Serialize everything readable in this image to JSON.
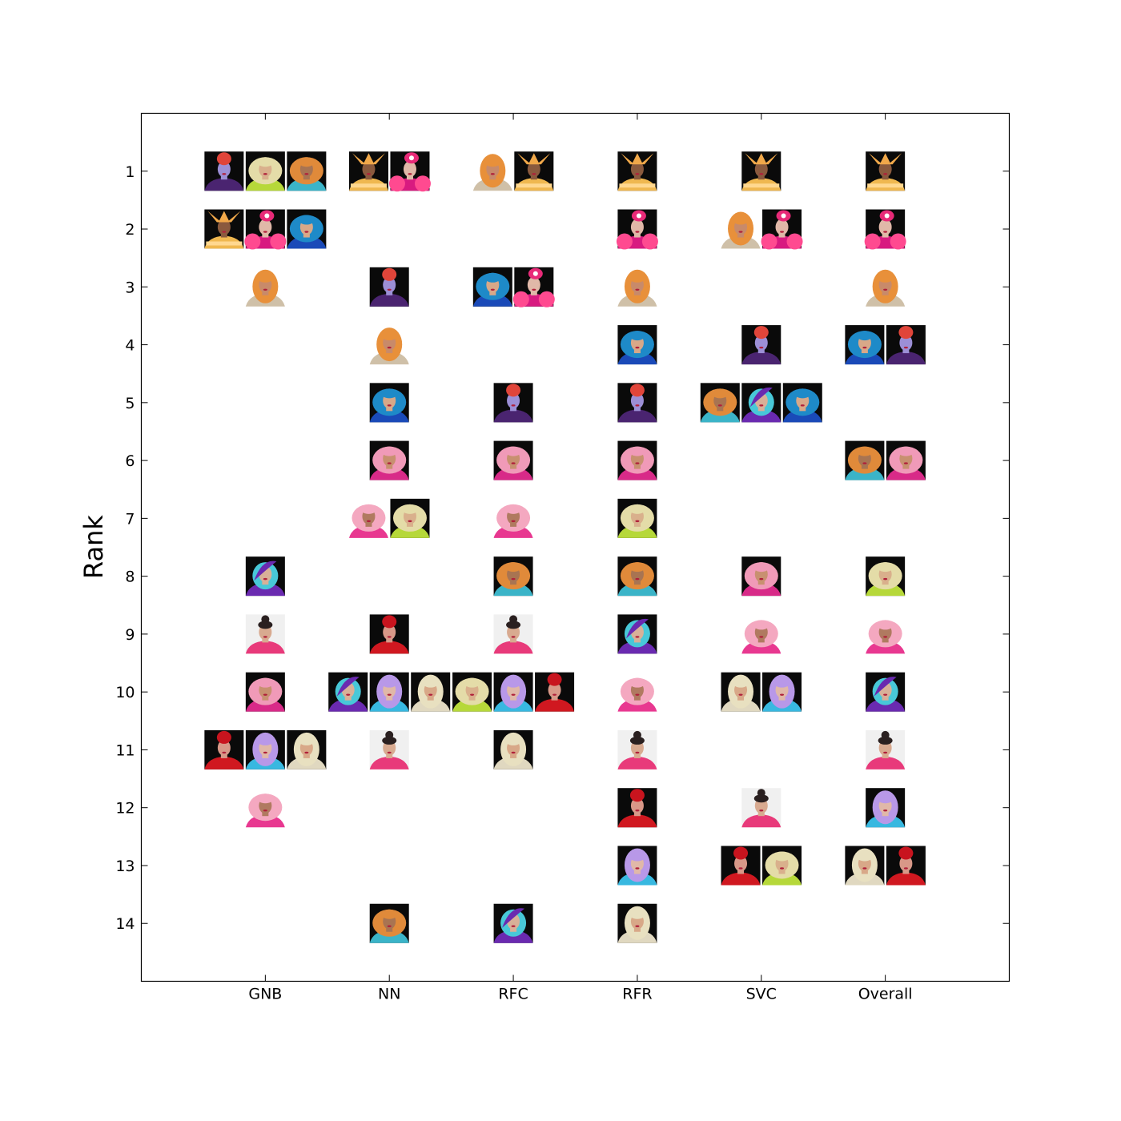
{
  "chart_data": {
    "type": "scatter",
    "title": "",
    "xlabel": "",
    "ylabel": "Rank",
    "categories": [
      "GNB",
      "NN",
      "RFC",
      "RFR",
      "SVC",
      "Overall"
    ],
    "y_ticks": [
      "1",
      "2",
      "3",
      "4",
      "5",
      "6",
      "7",
      "8",
      "9",
      "10",
      "11",
      "12",
      "13",
      "14"
    ],
    "ylim": [
      0,
      15
    ],
    "y_inverted": true,
    "grid": false,
    "legend": "none",
    "marker": "portrait-thumbnail",
    "points": [
      {
        "category": "GNB",
        "rank": 1,
        "portrait": "purple-devil"
      },
      {
        "category": "GNB",
        "rank": 1,
        "portrait": "blonde-green"
      },
      {
        "category": "GNB",
        "rank": 1,
        "portrait": "orange-curly"
      },
      {
        "category": "GNB",
        "rank": 2,
        "portrait": "gold-crown"
      },
      {
        "category": "GNB",
        "rank": 2,
        "portrait": "pink-hat"
      },
      {
        "category": "GNB",
        "rank": 2,
        "portrait": "blue-hair"
      },
      {
        "category": "GNB",
        "rank": 3,
        "portrait": "orange-long"
      },
      {
        "category": "GNB",
        "rank": 8,
        "portrait": "teal-purple"
      },
      {
        "category": "GNB",
        "rank": 9,
        "portrait": "dark-hair-light"
      },
      {
        "category": "GNB",
        "rank": 10,
        "portrait": "pink-curls"
      },
      {
        "category": "GNB",
        "rank": 11,
        "portrait": "red-updo"
      },
      {
        "category": "GNB",
        "rank": 11,
        "portrait": "lavender-hair"
      },
      {
        "category": "GNB",
        "rank": 11,
        "portrait": "platinum-hair"
      },
      {
        "category": "GNB",
        "rank": 12,
        "portrait": "pink-wavy"
      },
      {
        "category": "NN",
        "rank": 1,
        "portrait": "gold-crown"
      },
      {
        "category": "NN",
        "rank": 1,
        "portrait": "pink-hat"
      },
      {
        "category": "NN",
        "rank": 3,
        "portrait": "purple-devil"
      },
      {
        "category": "NN",
        "rank": 4,
        "portrait": "orange-long"
      },
      {
        "category": "NN",
        "rank": 5,
        "portrait": "blue-hair"
      },
      {
        "category": "NN",
        "rank": 6,
        "portrait": "pink-curls"
      },
      {
        "category": "NN",
        "rank": 7,
        "portrait": "pink-wavy"
      },
      {
        "category": "NN",
        "rank": 7,
        "portrait": "blonde-green"
      },
      {
        "category": "NN",
        "rank": 9,
        "portrait": "red-updo"
      },
      {
        "category": "NN",
        "rank": 10,
        "portrait": "teal-purple"
      },
      {
        "category": "NN",
        "rank": 10,
        "portrait": "lavender-hair"
      },
      {
        "category": "NN",
        "rank": 10,
        "portrait": "platinum-hair"
      },
      {
        "category": "NN",
        "rank": 11,
        "portrait": "dark-hair-light"
      },
      {
        "category": "NN",
        "rank": 14,
        "portrait": "orange-curly"
      },
      {
        "category": "RFC",
        "rank": 1,
        "portrait": "orange-long"
      },
      {
        "category": "RFC",
        "rank": 1,
        "portrait": "gold-crown"
      },
      {
        "category": "RFC",
        "rank": 3,
        "portrait": "blue-hair"
      },
      {
        "category": "RFC",
        "rank": 3,
        "portrait": "pink-hat"
      },
      {
        "category": "RFC",
        "rank": 5,
        "portrait": "purple-devil"
      },
      {
        "category": "RFC",
        "rank": 6,
        "portrait": "pink-curls"
      },
      {
        "category": "RFC",
        "rank": 7,
        "portrait": "pink-wavy"
      },
      {
        "category": "RFC",
        "rank": 8,
        "portrait": "orange-curly"
      },
      {
        "category": "RFC",
        "rank": 9,
        "portrait": "dark-hair-light"
      },
      {
        "category": "RFC",
        "rank": 10,
        "portrait": "blonde-green"
      },
      {
        "category": "RFC",
        "rank": 10,
        "portrait": "lavender-hair"
      },
      {
        "category": "RFC",
        "rank": 10,
        "portrait": "red-updo"
      },
      {
        "category": "RFC",
        "rank": 11,
        "portrait": "platinum-hair"
      },
      {
        "category": "RFC",
        "rank": 14,
        "portrait": "teal-purple"
      },
      {
        "category": "RFR",
        "rank": 1,
        "portrait": "gold-crown"
      },
      {
        "category": "RFR",
        "rank": 2,
        "portrait": "pink-hat"
      },
      {
        "category": "RFR",
        "rank": 3,
        "portrait": "orange-long"
      },
      {
        "category": "RFR",
        "rank": 4,
        "portrait": "blue-hair"
      },
      {
        "category": "RFR",
        "rank": 5,
        "portrait": "purple-devil"
      },
      {
        "category": "RFR",
        "rank": 6,
        "portrait": "pink-curls"
      },
      {
        "category": "RFR",
        "rank": 7,
        "portrait": "blonde-green"
      },
      {
        "category": "RFR",
        "rank": 8,
        "portrait": "orange-curly"
      },
      {
        "category": "RFR",
        "rank": 9,
        "portrait": "teal-purple"
      },
      {
        "category": "RFR",
        "rank": 10,
        "portrait": "pink-wavy"
      },
      {
        "category": "RFR",
        "rank": 11,
        "portrait": "dark-hair-light"
      },
      {
        "category": "RFR",
        "rank": 12,
        "portrait": "red-updo"
      },
      {
        "category": "RFR",
        "rank": 13,
        "portrait": "lavender-hair"
      },
      {
        "category": "RFR",
        "rank": 14,
        "portrait": "platinum-hair"
      },
      {
        "category": "SVC",
        "rank": 1,
        "portrait": "gold-crown"
      },
      {
        "category": "SVC",
        "rank": 2,
        "portrait": "orange-long"
      },
      {
        "category": "SVC",
        "rank": 2,
        "portrait": "pink-hat"
      },
      {
        "category": "SVC",
        "rank": 4,
        "portrait": "purple-devil"
      },
      {
        "category": "SVC",
        "rank": 5,
        "portrait": "orange-curly"
      },
      {
        "category": "SVC",
        "rank": 5,
        "portrait": "teal-purple"
      },
      {
        "category": "SVC",
        "rank": 5,
        "portrait": "blue-hair"
      },
      {
        "category": "SVC",
        "rank": 8,
        "portrait": "pink-curls"
      },
      {
        "category": "SVC",
        "rank": 9,
        "portrait": "pink-wavy"
      },
      {
        "category": "SVC",
        "rank": 10,
        "portrait": "platinum-hair"
      },
      {
        "category": "SVC",
        "rank": 10,
        "portrait": "lavender-hair"
      },
      {
        "category": "SVC",
        "rank": 12,
        "portrait": "dark-hair-light"
      },
      {
        "category": "SVC",
        "rank": 13,
        "portrait": "red-updo"
      },
      {
        "category": "SVC",
        "rank": 13,
        "portrait": "blonde-green"
      },
      {
        "category": "Overall",
        "rank": 1,
        "portrait": "gold-crown"
      },
      {
        "category": "Overall",
        "rank": 2,
        "portrait": "pink-hat"
      },
      {
        "category": "Overall",
        "rank": 3,
        "portrait": "orange-long"
      },
      {
        "category": "Overall",
        "rank": 4,
        "portrait": "blue-hair"
      },
      {
        "category": "Overall",
        "rank": 4,
        "portrait": "purple-devil"
      },
      {
        "category": "Overall",
        "rank": 6,
        "portrait": "orange-curly"
      },
      {
        "category": "Overall",
        "rank": 6,
        "portrait": "pink-curls"
      },
      {
        "category": "Overall",
        "rank": 8,
        "portrait": "blonde-green"
      },
      {
        "category": "Overall",
        "rank": 9,
        "portrait": "pink-wavy"
      },
      {
        "category": "Overall",
        "rank": 10,
        "portrait": "teal-purple"
      },
      {
        "category": "Overall",
        "rank": 11,
        "portrait": "dark-hair-light"
      },
      {
        "category": "Overall",
        "rank": 12,
        "portrait": "lavender-hair"
      },
      {
        "category": "Overall",
        "rank": 13,
        "portrait": "platinum-hair"
      },
      {
        "category": "Overall",
        "rank": 13,
        "portrait": "red-updo"
      }
    ]
  },
  "portrait_styles": {
    "purple-devil": {
      "bg": "#0a0a0a",
      "hair": "#e0453a",
      "skin": "#9c8fd6",
      "outfit": "#4a2470",
      "accent": "#7a3aa0",
      "shape": "updo"
    },
    "blonde-green": {
      "bg": "#0a0a0a",
      "hair": "#e4dca8",
      "skin": "#d9b08c",
      "outfit": "#b6d83a",
      "accent": "#e8e070",
      "shape": "wide"
    },
    "orange-curly": {
      "bg": "#0a0a0a",
      "hair": "#e08a3a",
      "skin": "#a87452",
      "outfit": "#3bb4c8",
      "accent": "#f0f0f0",
      "shape": "curly"
    },
    "gold-crown": {
      "bg": "#0a0a0a",
      "hair": "#f0a84a",
      "skin": "#8a5a3e",
      "outfit": "#f0b850",
      "accent": "#ffd890",
      "shape": "crown"
    },
    "pink-hat": {
      "bg": "#0a0a0a",
      "hair": "#e82a78",
      "skin": "#e0b8a8",
      "outfit": "#d81a80",
      "accent": "#ff4a90",
      "shape": "hat"
    },
    "blue-hair": {
      "bg": "#0a0a0a",
      "hair": "#1e8ac8",
      "skin": "#d8a888",
      "outfit": "#1a4ab8",
      "accent": "#2aa8e0",
      "shape": "wide"
    },
    "orange-long": {
      "bg": "#ffffff",
      "hair": "#e8903a",
      "skin": "#c88a6a",
      "outfit": "#cfc0a8",
      "accent": "#f0a050",
      "shape": "long"
    },
    "teal-purple": {
      "bg": "#0a0a0a",
      "hair": "#48c8d8",
      "skin": "#d8b098",
      "outfit": "#6a2ab0",
      "accent": "#6848c8",
      "shape": "side"
    },
    "dark-hair-light": {
      "bg": "#f0f0f0",
      "hair": "#2a2020",
      "skin": "#d8aa90",
      "outfit": "#e83a7a",
      "accent": "#f0f0f0",
      "shape": "bun"
    },
    "pink-curls": {
      "bg": "#0a0a0a",
      "hair": "#f09ab8",
      "skin": "#c89070",
      "outfit": "#d82a88",
      "accent": "#f8b8d0",
      "shape": "curly"
    },
    "red-updo": {
      "bg": "#0a0a0a",
      "hair": "#c8141e",
      "skin": "#d89888",
      "outfit": "#d01820",
      "accent": "#e83038",
      "shape": "updo"
    },
    "lavender-hair": {
      "bg": "#0a0a0a",
      "hair": "#b898e8",
      "skin": "#e0b8a8",
      "outfit": "#38b8e0",
      "accent": "#c8a8f0",
      "shape": "long"
    },
    "platinum-hair": {
      "bg": "#0a0a0a",
      "hair": "#e8e0c0",
      "skin": "#d8a888",
      "outfit": "#e0d8c0",
      "accent": "#fff0d0",
      "shape": "long"
    },
    "pink-wavy": {
      "bg": "#ffffff",
      "hair": "#f4a8c0",
      "skin": "#b07a60",
      "outfit": "#e83890",
      "accent": "#f8c8d8",
      "shape": "wide"
    }
  }
}
